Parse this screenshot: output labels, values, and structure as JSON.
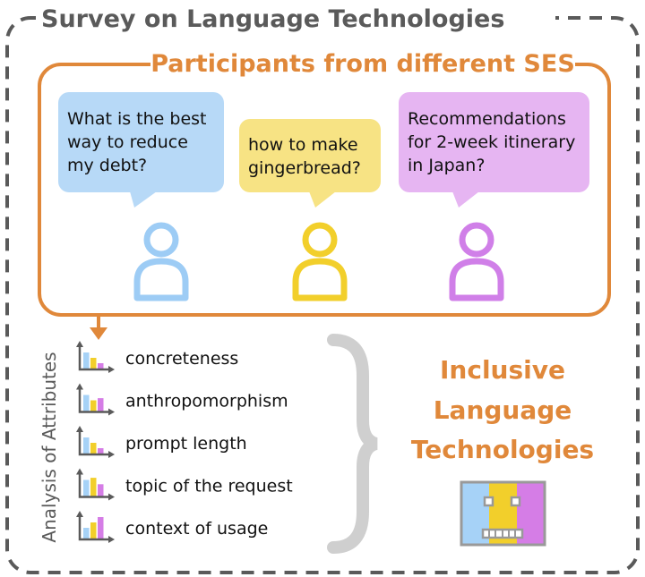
{
  "survey_title": "Survey on Language Technologies",
  "participants_title": "Participants from different SES",
  "bubbles": [
    {
      "lines": [
        "What is the best",
        "way to reduce",
        "my debt?"
      ],
      "color": "#B7D9F7"
    },
    {
      "lines": [
        "how to make",
        "gingerbread?"
      ],
      "color": "#F7E384"
    },
    {
      "lines": [
        "Recommendations",
        "for 2-week itinerary",
        "in Japan?"
      ],
      "color": "#E6B5F2"
    }
  ],
  "person_colors": [
    "#9DCCF5",
    "#F2CF2B",
    "#D07FE8"
  ],
  "analysis_label": "Analysis of Attributes",
  "attributes": [
    {
      "label": "concreteness",
      "bars": [
        3,
        2,
        1
      ]
    },
    {
      "label": "anthropomorphism",
      "bars": [
        3,
        2,
        2.4
      ]
    },
    {
      "label": "prompt length",
      "bars": [
        3,
        2,
        1
      ]
    },
    {
      "label": "topic of the request",
      "bars": [
        3,
        3.4,
        2.2
      ]
    },
    {
      "label": "context of usage",
      "bars": [
        2,
        3,
        4
      ]
    }
  ],
  "result_lines": [
    "Inclusive",
    "Language",
    "Technologies"
  ],
  "colors": {
    "orange": "#E0883A",
    "gray": "#5A5A5A",
    "brace": "#CFCFCF",
    "blue": "#A6D2F7",
    "yellow": "#F2CF2B",
    "purple": "#D57DE6"
  }
}
